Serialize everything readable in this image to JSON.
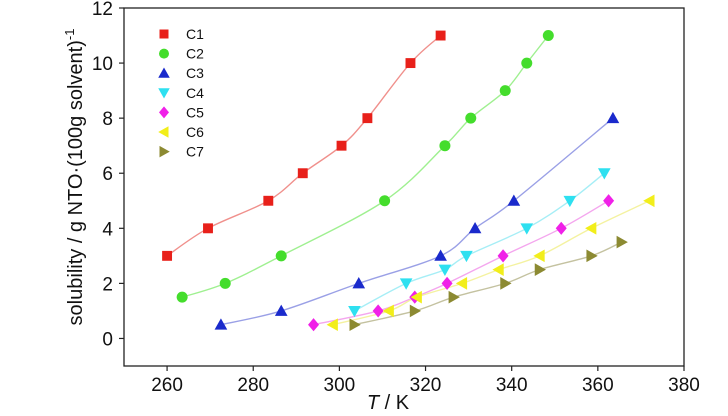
{
  "chart_data": {
    "type": "scatter",
    "title": "",
    "xlabel_italic": "T",
    "xlabel_rest": " / K",
    "ylabel": "solubility / g NTO·(100g solvent)",
    "ylabel_superscript": "-1",
    "xlim": [
      250,
      380
    ],
    "ylim": [
      -1,
      12
    ],
    "xticks": [
      260,
      280,
      300,
      320,
      340,
      360,
      380
    ],
    "yticks": [
      0,
      2,
      4,
      6,
      8,
      10,
      12
    ],
    "grid": false,
    "legend_position": "top-left",
    "series": [
      {
        "name": "C1",
        "marker": "square",
        "color": "#e8201a",
        "curve_color": "#f0908c",
        "x": [
          260,
          269.5,
          283.5,
          291.5,
          300.5,
          306.5,
          316.5,
          323.5
        ],
        "y": [
          3.0,
          4.0,
          5.0,
          6.0,
          7.0,
          8.0,
          10.0,
          11.0
        ]
      },
      {
        "name": "C2",
        "marker": "circle",
        "color": "#44dd2c",
        "curve_color": "#9ff090",
        "x": [
          263.5,
          273.5,
          286.5,
          310.5,
          324.5,
          330.5,
          338.5,
          343.5,
          348.5
        ],
        "y": [
          1.5,
          2.0,
          3.0,
          5.0,
          7.0,
          8.0,
          9.0,
          10.0,
          11.0
        ]
      },
      {
        "name": "C3",
        "marker": "triangle-up",
        "color": "#1a2acc",
        "curve_color": "#9aa0e6",
        "x": [
          272.5,
          286.5,
          304.5,
          323.5,
          331.5,
          340.5,
          363.5
        ],
        "y": [
          0.5,
          1.0,
          2.0,
          3.0,
          4.0,
          5.0,
          8.0
        ]
      },
      {
        "name": "C4",
        "marker": "triangle-down",
        "color": "#2ee0f0",
        "curve_color": "#a6eef6",
        "x": [
          303.5,
          315.5,
          324.5,
          329.5,
          343.5,
          353.5,
          361.5
        ],
        "y": [
          1.0,
          2.0,
          2.5,
          3.0,
          4.0,
          5.0,
          6.0
        ]
      },
      {
        "name": "C5",
        "marker": "diamond",
        "color": "#f020e8",
        "curve_color": "#f4a6ee",
        "x": [
          294,
          309,
          317.5,
          325,
          338,
          351.5,
          362.5
        ],
        "y": [
          0.5,
          1.0,
          1.5,
          2.0,
          3.0,
          4.0,
          5.0
        ]
      },
      {
        "name": "C6",
        "marker": "triangle-left",
        "color": "#f2ee1a",
        "curve_color": "#f4f2a0",
        "x": [
          298.5,
          311.5,
          318,
          328.5,
          337,
          346.5,
          358.5,
          372
        ],
        "y": [
          0.5,
          1.0,
          1.5,
          2.0,
          2.5,
          3.0,
          4.0,
          5.0
        ]
      },
      {
        "name": "C7",
        "marker": "triangle-right",
        "color": "#8c8a32",
        "curve_color": "#c4c2a0",
        "x": [
          303.5,
          317.5,
          326.5,
          338.5,
          346.5,
          358.5,
          365.5
        ],
        "y": [
          0.5,
          1.0,
          1.5,
          2.0,
          2.5,
          3.0,
          3.5
        ]
      }
    ]
  }
}
